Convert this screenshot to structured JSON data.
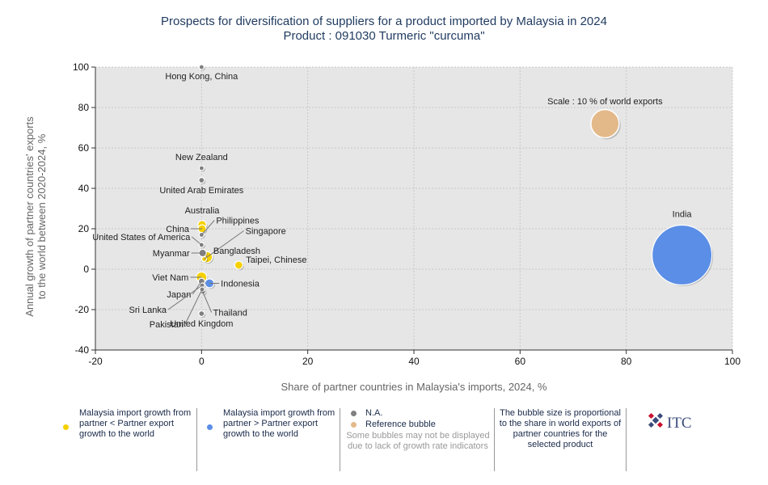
{
  "title": {
    "line1": "Prospects for diversification of suppliers for a product imported by Malaysia in 2024",
    "line2": "Product : 091030 Turmeric \"curcuma\""
  },
  "chart_data": {
    "type": "scatter",
    "xlabel": "Share of partner countries in Malaysia's imports, 2024, %",
    "ylabel_line1": "Annual growth of partner countries' exports",
    "ylabel_line2": "to the world between 2020-2024, %",
    "xlim": [
      -20,
      100
    ],
    "ylim": [
      -40,
      100
    ],
    "x_ticks": [
      -20,
      0,
      20,
      40,
      60,
      80,
      100
    ],
    "y_ticks": [
      -40,
      -20,
      0,
      20,
      40,
      60,
      80,
      100
    ],
    "grid": true,
    "colors": {
      "lower": "#f5d000",
      "higher": "#5b8ee6",
      "na": "#808080",
      "reference": "#e3b98a",
      "plot_bg": "#e6e6e6"
    },
    "reference_bubble": {
      "label": "Scale : 10 % of world exports",
      "x": 76,
      "y": 72,
      "world_share": 10
    },
    "points": [
      {
        "name": "India",
        "x": 90.5,
        "y": 7,
        "world_share": 45,
        "category": "higher"
      },
      {
        "name": "Hong Kong, China",
        "x": 0,
        "y": 100,
        "world_share": 0.3,
        "category": "na"
      },
      {
        "name": "New Zealand",
        "x": 0,
        "y": 50,
        "world_share": 0.05,
        "category": "na"
      },
      {
        "name": "United Arab Emirates",
        "x": 0,
        "y": 44,
        "world_share": 0.4,
        "category": "na"
      },
      {
        "name": "Australia",
        "x": 0.1,
        "y": 22,
        "world_share": 0.9,
        "category": "lower"
      },
      {
        "name": "China",
        "x": 0.1,
        "y": 20,
        "world_share": 0.8,
        "category": "lower"
      },
      {
        "name": "Philippines",
        "x": 0,
        "y": 17,
        "world_share": 0.05,
        "category": "na"
      },
      {
        "name": "United States of America",
        "x": 0,
        "y": 12,
        "world_share": 0.05,
        "category": "na"
      },
      {
        "name": "Myanmar",
        "x": 0.2,
        "y": 8,
        "world_share": 0.7,
        "category": "na"
      },
      {
        "name": "Singapore",
        "x": 0.5,
        "y": 5,
        "world_share": 0.3,
        "category": "lower"
      },
      {
        "name": "Bangladesh",
        "x": 1,
        "y": 6,
        "world_share": 1.5,
        "category": "lower"
      },
      {
        "name": "Taipei, Chinese",
        "x": 7,
        "y": 2,
        "world_share": 0.8,
        "category": "lower"
      },
      {
        "name": "Viet Nam",
        "x": 0,
        "y": -4,
        "world_share": 1.4,
        "category": "lower"
      },
      {
        "name": "Japan",
        "x": 0,
        "y": -6,
        "world_share": 0.5,
        "category": "na"
      },
      {
        "name": "Indonesia",
        "x": 1.5,
        "y": -7,
        "world_share": 1.0,
        "category": "higher"
      },
      {
        "name": "Sri Lanka",
        "x": 0.1,
        "y": -8,
        "world_share": 0.3,
        "category": "na"
      },
      {
        "name": "Pakistan",
        "x": 0.1,
        "y": -10,
        "world_share": 0.3,
        "category": "na"
      },
      {
        "name": "Thailand",
        "x": 0.2,
        "y": -11,
        "world_share": 0.4,
        "category": "na"
      },
      {
        "name": "United Kingdom",
        "x": 0,
        "y": -22,
        "world_share": 0.4,
        "category": "na"
      }
    ]
  },
  "legend": {
    "lower": "Malaysia import growth from partner < Partner export growth to the world",
    "higher": "Malaysia import growth from partner > Partner export growth to the world",
    "na": "N.A.",
    "reference": "Reference bubble",
    "note": "Some bubbles may not be displayed due to lack of growth rate indicators",
    "size_note": "The bubble size is proportional to the share in world exports of partner countries for the selected product"
  },
  "logo_text": "ITC"
}
